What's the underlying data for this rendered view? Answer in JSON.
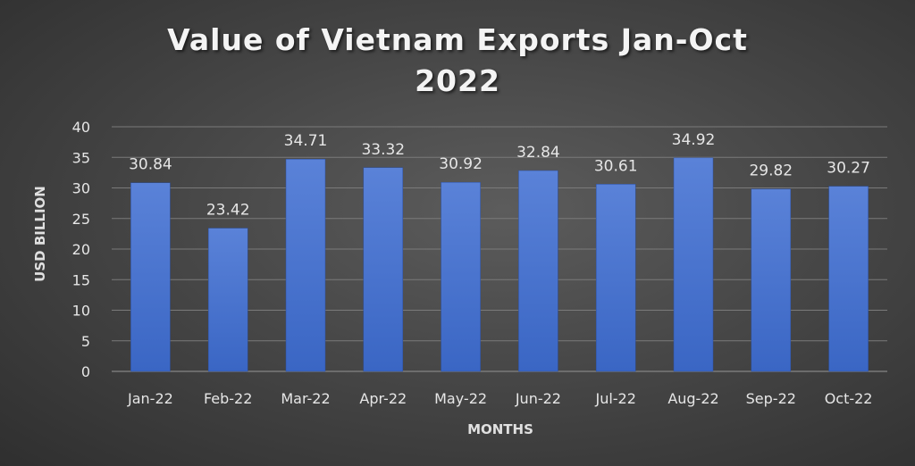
{
  "chart_data": {
    "type": "bar",
    "title_lines": [
      "Value of Vietnam Exports Jan-Oct",
      "2022"
    ],
    "xlabel": "MONTHS",
    "ylabel": "USD BILLION",
    "categories": [
      "Jan-22",
      "Feb-22",
      "Mar-22",
      "Apr-22",
      "May-22",
      "Jun-22",
      "Jul-22",
      "Aug-22",
      "Sep-22",
      "Oct-22"
    ],
    "values": [
      30.84,
      23.42,
      34.71,
      33.32,
      30.92,
      32.84,
      30.61,
      34.92,
      29.82,
      30.27
    ],
    "value_labels": [
      "30.84",
      "23.42",
      "34.71",
      "33.32",
      "30.92",
      "32.84",
      "30.61",
      "34.92",
      "29.82",
      "30.27"
    ],
    "ylim": [
      0,
      40
    ],
    "yticks": [
      0,
      5,
      10,
      15,
      20,
      25,
      30,
      35,
      40
    ],
    "grid": true,
    "legend": "none",
    "colors": {
      "bar_top": "#5a82d8",
      "bar_bottom": "#3a66c4",
      "grid": "#7a7a7a",
      "text": "#e6e6e6"
    }
  }
}
